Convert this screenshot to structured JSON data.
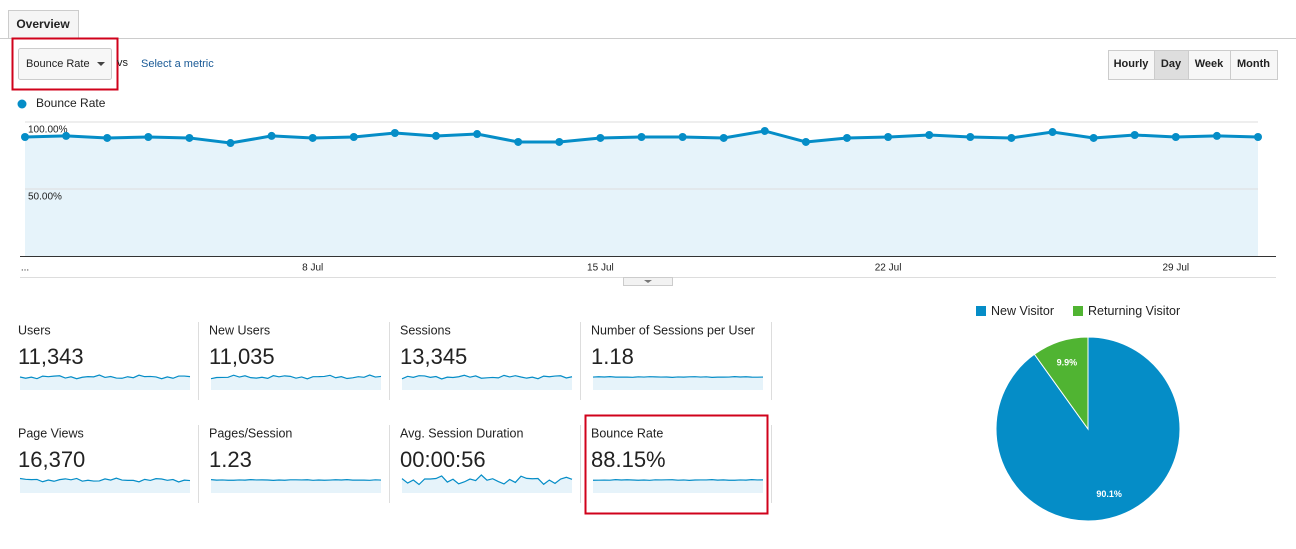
{
  "tab": "Overview",
  "metric_dropdown": "Bounce Rate",
  "vs": "vs",
  "select_metric": "Select a metric",
  "granularity": [
    "Hourly",
    "Day",
    "Week",
    "Month"
  ],
  "active_granularity": 1,
  "chart_data": [
    {
      "type": "line",
      "categories": [
        "...",
        null,
        null,
        null,
        null,
        null,
        null,
        "8 Jul",
        null,
        null,
        null,
        null,
        null,
        null,
        "15 Jul",
        null,
        null,
        null,
        null,
        null,
        null,
        "22 Jul",
        null,
        null,
        null,
        null,
        null,
        null,
        "29 Jul",
        null,
        null
      ],
      "series": [
        {
          "name": "Bounce Rate",
          "color": "#058dc7",
          "values": [
            88.8,
            89.6,
            88.1,
            88.8,
            88.1,
            84.3,
            89.6,
            88.1,
            88.8,
            91.8,
            89.6,
            91.0,
            85.1,
            85.1,
            88.1,
            88.8,
            88.8,
            88.1,
            93.3,
            85.1,
            88.1,
            88.8,
            90.3,
            88.8,
            88.1,
            92.5,
            88.1,
            90.3,
            88.8,
            89.6,
            88.8
          ]
        }
      ],
      "ylim": [
        0,
        100
      ],
      "yticks": [
        {
          "value": 50,
          "label": "50.00%"
        },
        {
          "value": 100,
          "label": "100.00%"
        }
      ],
      "grid": true
    },
    {
      "type": "pie",
      "categories": [
        "New Visitor",
        "Returning Visitor"
      ],
      "values": [
        90.1,
        9.9
      ],
      "value_labels": [
        "90.1%",
        "9.9%"
      ],
      "colors": [
        "#058dc7",
        "#50b432"
      ]
    }
  ],
  "metrics": [
    {
      "label": "Users",
      "value": "11,343"
    },
    {
      "label": "New Users",
      "value": "11,035"
    },
    {
      "label": "Sessions",
      "value": "13,345"
    },
    {
      "label": "Number of Sessions per User",
      "value": "1.18"
    },
    {
      "label": "Page Views",
      "value": "16,370"
    },
    {
      "label": "Pages/Session",
      "value": "1.23"
    },
    {
      "label": "Avg. Session Duration",
      "value": "00:00:56"
    },
    {
      "label": "Bounce Rate",
      "value": "88.15%"
    }
  ]
}
